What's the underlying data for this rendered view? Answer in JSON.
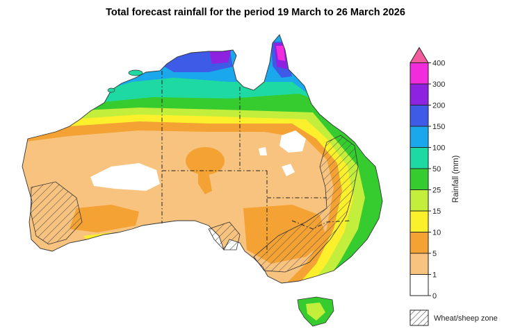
{
  "title": "Total forecast rainfall for the period 19 March to 26 March 2026",
  "legend": {
    "axis_label": "Rainfall (mm)",
    "ticks": [
      "400",
      "300",
      "200",
      "150",
      "100",
      "50",
      "25",
      "15",
      "10",
      "5",
      "1",
      "0"
    ],
    "bands": [
      {
        "from": "0",
        "to": "1",
        "color": "#ffffff"
      },
      {
        "from": "1",
        "to": "5",
        "color": "#f8c37f"
      },
      {
        "from": "5",
        "to": "10",
        "color": "#f3a233"
      },
      {
        "from": "10",
        "to": "15",
        "color": "#fbf02b"
      },
      {
        "from": "15",
        "to": "25",
        "color": "#c3ee3c"
      },
      {
        "from": "25",
        "to": "50",
        "color": "#36cc2f"
      },
      {
        "from": "50",
        "to": "100",
        "color": "#1ed9a1"
      },
      {
        "from": "100",
        "to": "150",
        "color": "#1aa7ec"
      },
      {
        "from": "150",
        "to": "200",
        "color": "#3d5be6"
      },
      {
        "from": "200",
        "to": "300",
        "color": "#8d22e0"
      },
      {
        "from": "300",
        "to": "400",
        "color": "#f02cdd"
      },
      {
        "from": "400",
        "to": "",
        "color": "#f25c9f"
      }
    ],
    "zone_label": "Wheat/sheep zone"
  }
}
